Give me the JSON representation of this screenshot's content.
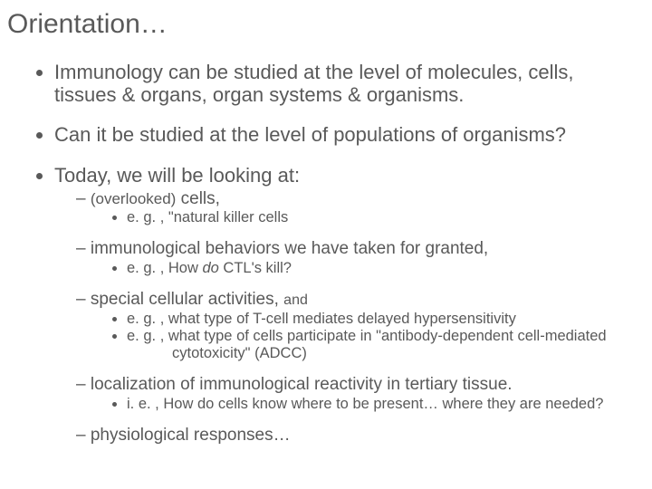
{
  "title": "Orientation…",
  "bullets": {
    "b1": "Immunology can be studied at the level of molecules, cells, tissues & organs, organ systems & organisms.",
    "b2": "Can it be studied at the level of populations of organisms?",
    "b3": "Today, we will be looking at:",
    "b3_1_prefix": "(overlooked)",
    "b3_1_rest": " cells,",
    "b3_1_a": "e. g. , \"natural killer cells",
    "b3_2": "immunological behaviors we have taken for granted,",
    "b3_2_a_prefix": "e. g. , How ",
    "b3_2_a_italic": "do",
    "b3_2_a_rest": " CTL's kill?",
    "b3_3": "special cellular activities, ",
    "b3_3_and": "and",
    "b3_3_a": "e. g. ,  what type of T-cell mediates delayed hypersensitivity",
    "b3_3_b": "e. g. ,  what type of cells participate in \"antibody-dependent cell-mediated cytotoxicity\" (ADCC)",
    "b3_4": "localization of immunological reactivity in tertiary tissue.",
    "b3_4_a": "i. e. , How do cells know where to be present… where they are needed?",
    "b3_5": "physiological responses…"
  },
  "colors": {
    "text": "#595959",
    "background": "#ffffff"
  }
}
